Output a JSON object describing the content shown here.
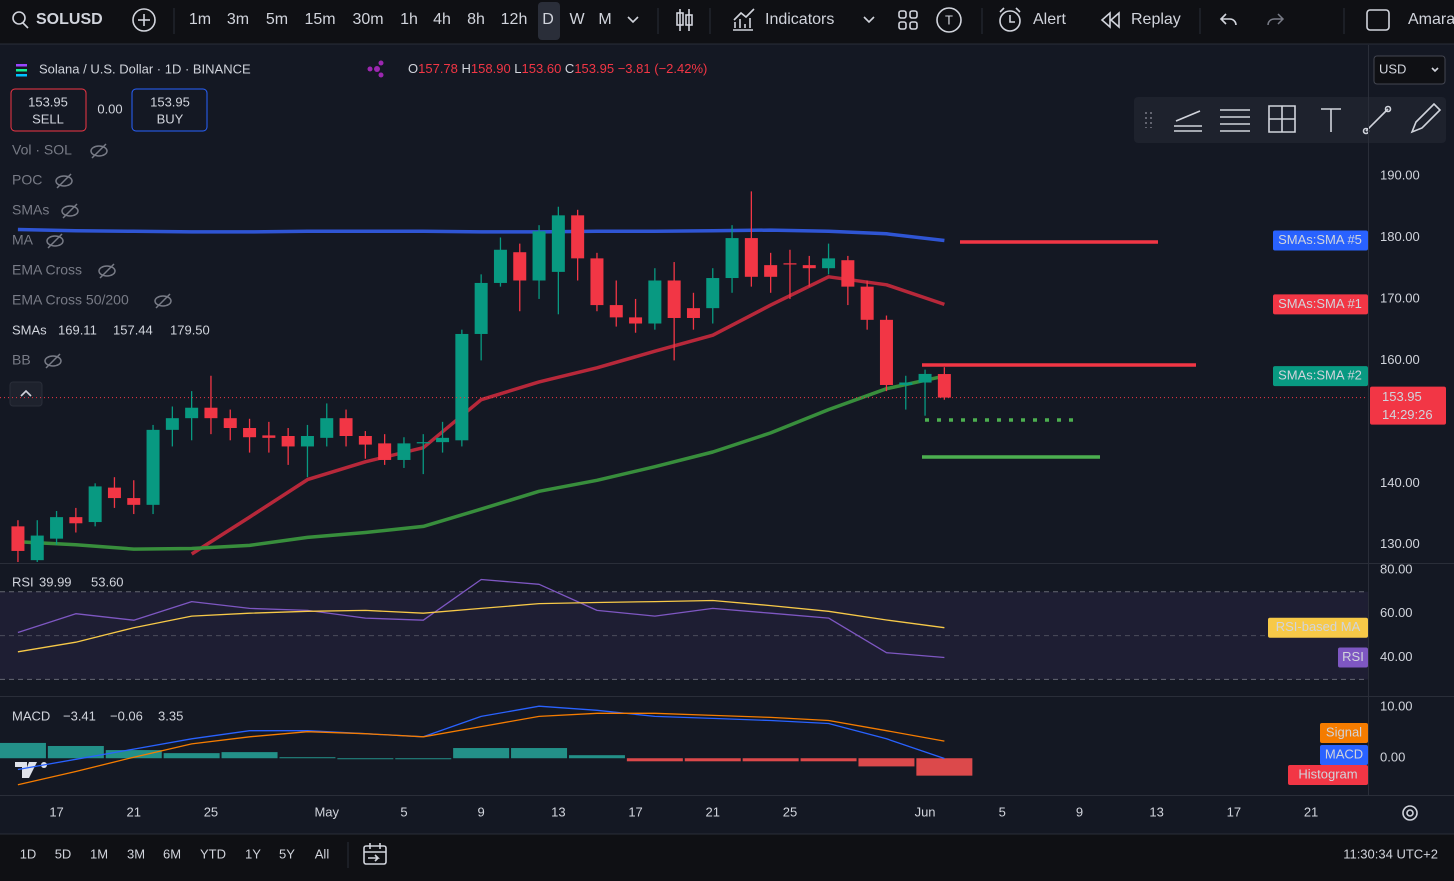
{
  "toolbar": {
    "symbol": "SOLUSD",
    "intervals": [
      "1m",
      "3m",
      "5m",
      "15m",
      "30m",
      "1h",
      "4h",
      "8h",
      "12h",
      "D",
      "W",
      "M"
    ],
    "indicators": "Indicators",
    "alert": "Alert",
    "replay": "Replay",
    "user": "Amara",
    "template": "T"
  },
  "header": {
    "title": "Solana / U.S. Dollar · 1D · BINANCE",
    "ohlc": [
      {
        "label": "O",
        "value": "157.78"
      },
      {
        "label": "H",
        "value": "158.90"
      },
      {
        "label": "L",
        "value": "153.60"
      },
      {
        "label": "C",
        "value": "153.95"
      }
    ],
    "change": "−3.81",
    "change_pct": "(−2.42%)",
    "currency": "USD"
  },
  "trade": {
    "sell_price": "153.95",
    "sell": "SELL",
    "spread": "0.00",
    "buy_price": "153.95",
    "buy": "BUY"
  },
  "legend": {
    "items": [
      "Vol · SOL",
      "POC",
      "SMAs",
      "MA",
      "EMA Cross",
      "EMA Cross 50/200"
    ],
    "smas": {
      "label": "SMAs",
      "values": [
        "169.11",
        "157.44",
        "179.50"
      ]
    },
    "bb": "BB"
  },
  "countdown": "14:29:26",
  "bottom": {
    "ranges": [
      "1D",
      "5D",
      "1M",
      "3M",
      "6M",
      "YTD",
      "1Y",
      "5Y",
      "All"
    ],
    "time": "11:30:34 UTC+2"
  },
  "chart_data": [
    {
      "type": "candlestick",
      "xlim": [
        -0.93,
        69.95
      ],
      "xticks": [
        {
          "value": 2,
          "label": "17"
        },
        {
          "value": 6,
          "label": "21"
        },
        {
          "value": 10,
          "label": "25"
        },
        {
          "value": 16,
          "label": "May"
        },
        {
          "value": 20,
          "label": "5"
        },
        {
          "value": 24,
          "label": "9"
        },
        {
          "value": 28,
          "label": "13"
        },
        {
          "value": 32,
          "label": "17"
        },
        {
          "value": 36,
          "label": "21"
        },
        {
          "value": 40,
          "label": "25"
        },
        {
          "value": 47,
          "label": "Jun"
        },
        {
          "value": 51,
          "label": "5"
        },
        {
          "value": 55,
          "label": "9"
        },
        {
          "value": 59,
          "label": "13"
        },
        {
          "value": 63,
          "label": "17"
        },
        {
          "value": 67,
          "label": "21"
        }
      ],
      "ylim": [
        127.2,
        210.5
      ],
      "yticks": [
        {
          "value": 190,
          "label": "190.00"
        },
        {
          "value": 180,
          "label": "180.00"
        },
        {
          "value": 170,
          "label": "170.00"
        },
        {
          "value": 160,
          "label": "160.00"
        },
        {
          "value": 140,
          "label": "140.00"
        },
        {
          "value": 130,
          "label": "130.00"
        }
      ],
      "grid": false,
      "up_color": "#089981",
      "down_color": "#f23645",
      "open": [
        133,
        127.5,
        131,
        134.5,
        133.7,
        139.3,
        137.6,
        136.5,
        148.7,
        150.6,
        152.3,
        150.6,
        149,
        147.8,
        147.7,
        146,
        147.4,
        150.6,
        147.7,
        146.5,
        143.8,
        146.5,
        146.7,
        147,
        164.3,
        172.6,
        177.6,
        173,
        174.4,
        183.6,
        176.6,
        169,
        167,
        166,
        173,
        168.5,
        168.5,
        173.4,
        179.9,
        175.5,
        175.8,
        175.5,
        175,
        176.3,
        172,
        166.6,
        156,
        156.4,
        157.78
      ],
      "high": [
        134,
        134,
        135.5,
        136,
        140,
        141,
        140.5,
        149.5,
        152.5,
        155,
        157.5,
        152,
        150.5,
        150,
        149,
        149.5,
        153,
        152,
        148.5,
        148,
        147.5,
        148,
        150,
        165,
        174,
        180,
        179,
        182,
        185,
        184.5,
        177.5,
        173,
        170,
        175,
        176,
        171,
        175,
        182,
        187.5,
        177.5,
        178,
        177,
        179,
        177,
        173,
        167.3,
        157.5,
        158.5,
        158.9
      ],
      "low": [
        127,
        127,
        130,
        132,
        133,
        136,
        135,
        135,
        146,
        147,
        148,
        147,
        145,
        145,
        143,
        141,
        146,
        146,
        144,
        143,
        142.5,
        141.5,
        145,
        146,
        160,
        172,
        168,
        170,
        167.5,
        173,
        168,
        165.5,
        164.5,
        165,
        160,
        165,
        166,
        171,
        172,
        171,
        170,
        172,
        174,
        169,
        165,
        155,
        152,
        151,
        153.6
      ],
      "close": [
        129,
        131.5,
        134.5,
        133.5,
        139.5,
        137.6,
        136.5,
        148.7,
        150.6,
        152.3,
        150.6,
        149,
        147.5,
        147.4,
        146,
        147.7,
        150.6,
        147.7,
        146.3,
        143.8,
        146.5,
        146.7,
        147.4,
        164.3,
        172.6,
        178,
        173,
        181,
        183.6,
        176.6,
        169,
        167,
        166,
        173,
        166.9,
        166.9,
        173.4,
        179.9,
        173.6,
        173.6,
        175.6,
        175,
        176.6,
        172,
        166.6,
        156,
        156.4,
        157.8,
        153.95
      ],
      "series": [
        {
          "name": "SMAs:SMA #5",
          "color": "#2f55d4",
          "label_color": "#2962ff",
          "x": [
            0,
            3,
            6,
            9,
            12,
            15,
            18,
            21,
            24,
            27,
            30,
            33,
            36,
            39,
            42,
            45,
            48
          ],
          "values": [
            181.3,
            181.1,
            181.0,
            180.9,
            180.9,
            181.0,
            181.0,
            181.0,
            180.9,
            180.9,
            181.0,
            181.0,
            181.1,
            181.2,
            181.0,
            180.6,
            179.5
          ]
        },
        {
          "name": "SMAs:SMA #1",
          "color": "#b7283a",
          "label_color": "#f23645",
          "x": [
            9,
            12,
            15,
            18,
            21,
            24,
            27,
            30,
            33,
            36,
            39,
            42,
            45,
            48
          ],
          "values": [
            128.5,
            134.5,
            140.6,
            143.5,
            145.8,
            153.6,
            156.5,
            158.8,
            161.5,
            164.1,
            169.0,
            173.6,
            172.3,
            169.11
          ]
        },
        {
          "name": "SMAs:SMA #2",
          "color": "#388e3c",
          "label_color": "#089981",
          "x": [
            0,
            3,
            6,
            9,
            12,
            15,
            18,
            21,
            24,
            27,
            30,
            33,
            36,
            39,
            42,
            45,
            48
          ],
          "values": [
            130.5,
            130.0,
            129.3,
            129.4,
            129.9,
            131.2,
            132.0,
            133.0,
            135.8,
            138.7,
            140.5,
            142.7,
            145.1,
            148.2,
            152.0,
            155.4,
            157.44
          ]
        }
      ]
    },
    {
      "type": "line",
      "title": "RSI",
      "legend_labels": [
        "39.99",
        "53.60"
      ],
      "ylim": [
        22.9,
        82.2
      ],
      "yticks": [
        {
          "value": 80,
          "label": "80.00"
        },
        {
          "value": 60,
          "label": "60.00"
        },
        {
          "value": 40,
          "label": "40.00"
        }
      ],
      "bands": [
        70,
        50,
        30
      ],
      "series": [
        {
          "name": "RSI",
          "color": "#7e57c2",
          "x": [
            0,
            3,
            6,
            9,
            12,
            15,
            18,
            21,
            24,
            27,
            30,
            33,
            36,
            39,
            42,
            45,
            48
          ],
          "values": [
            51.4,
            60,
            57,
            65.5,
            62.4,
            61.5,
            58,
            57,
            75.6,
            73.4,
            61.5,
            58.9,
            62.4,
            60.2,
            58,
            42.2,
            39.99
          ]
        },
        {
          "name": "RSI-based MA",
          "color": "#f7c948",
          "x": [
            0,
            3,
            6,
            9,
            12,
            15,
            18,
            21,
            24,
            27,
            30,
            33,
            36,
            39,
            42,
            45,
            48
          ],
          "values": [
            42.6,
            47,
            53.6,
            58.9,
            60.2,
            61.1,
            61.5,
            60.2,
            62.4,
            64.6,
            65.1,
            65.5,
            66,
            63.7,
            61.1,
            57.1,
            53.6
          ]
        }
      ]
    },
    {
      "type": "macd",
      "title": "MACD",
      "legend_labels": [
        "−3.41",
        "−0.06",
        "3.35"
      ],
      "ylim": [
        -7.2,
        11.8
      ],
      "yticks": [
        {
          "value": 10,
          "label": "10.00"
        },
        {
          "value": 0,
          "label": "0.00"
        }
      ],
      "series": [
        {
          "name": "Histogram",
          "type": "bar",
          "color": "#26a69a",
          "negative_color": "#ff5252",
          "x": [
            0,
            3,
            6,
            9,
            12,
            15,
            18,
            21,
            24,
            27,
            30,
            33,
            36,
            39,
            42,
            45,
            48
          ],
          "values": [
            3,
            2.4,
            1.6,
            1,
            1.2,
            0.2,
            0,
            0,
            2,
            2,
            0.6,
            -0.6,
            -0.6,
            -0.6,
            -0.6,
            -1.6,
            -3.41
          ]
        },
        {
          "name": "MACD",
          "color": "#2962ff",
          "x": [
            0,
            3,
            6,
            9,
            12,
            15,
            18,
            21,
            24,
            27,
            30,
            33,
            36,
            39,
            42,
            45,
            48
          ],
          "values": [
            -2.2,
            -0.2,
            1.8,
            3.8,
            5.4,
            5.4,
            4.8,
            4.2,
            8.2,
            10.2,
            9.4,
            8.2,
            7.8,
            7.4,
            6.8,
            3.8,
            -0.06
          ]
        },
        {
          "name": "Signal",
          "color": "#f57c00",
          "x": [
            0,
            3,
            6,
            9,
            12,
            15,
            18,
            21,
            24,
            27,
            30,
            33,
            36,
            39,
            42,
            45,
            48
          ],
          "values": [
            -5.2,
            -2.6,
            0.2,
            2.8,
            4.2,
            5.2,
            4.8,
            4.2,
            6.2,
            8.2,
            8.8,
            8.8,
            8.4,
            8,
            7.4,
            5.4,
            3.35
          ]
        }
      ]
    }
  ]
}
